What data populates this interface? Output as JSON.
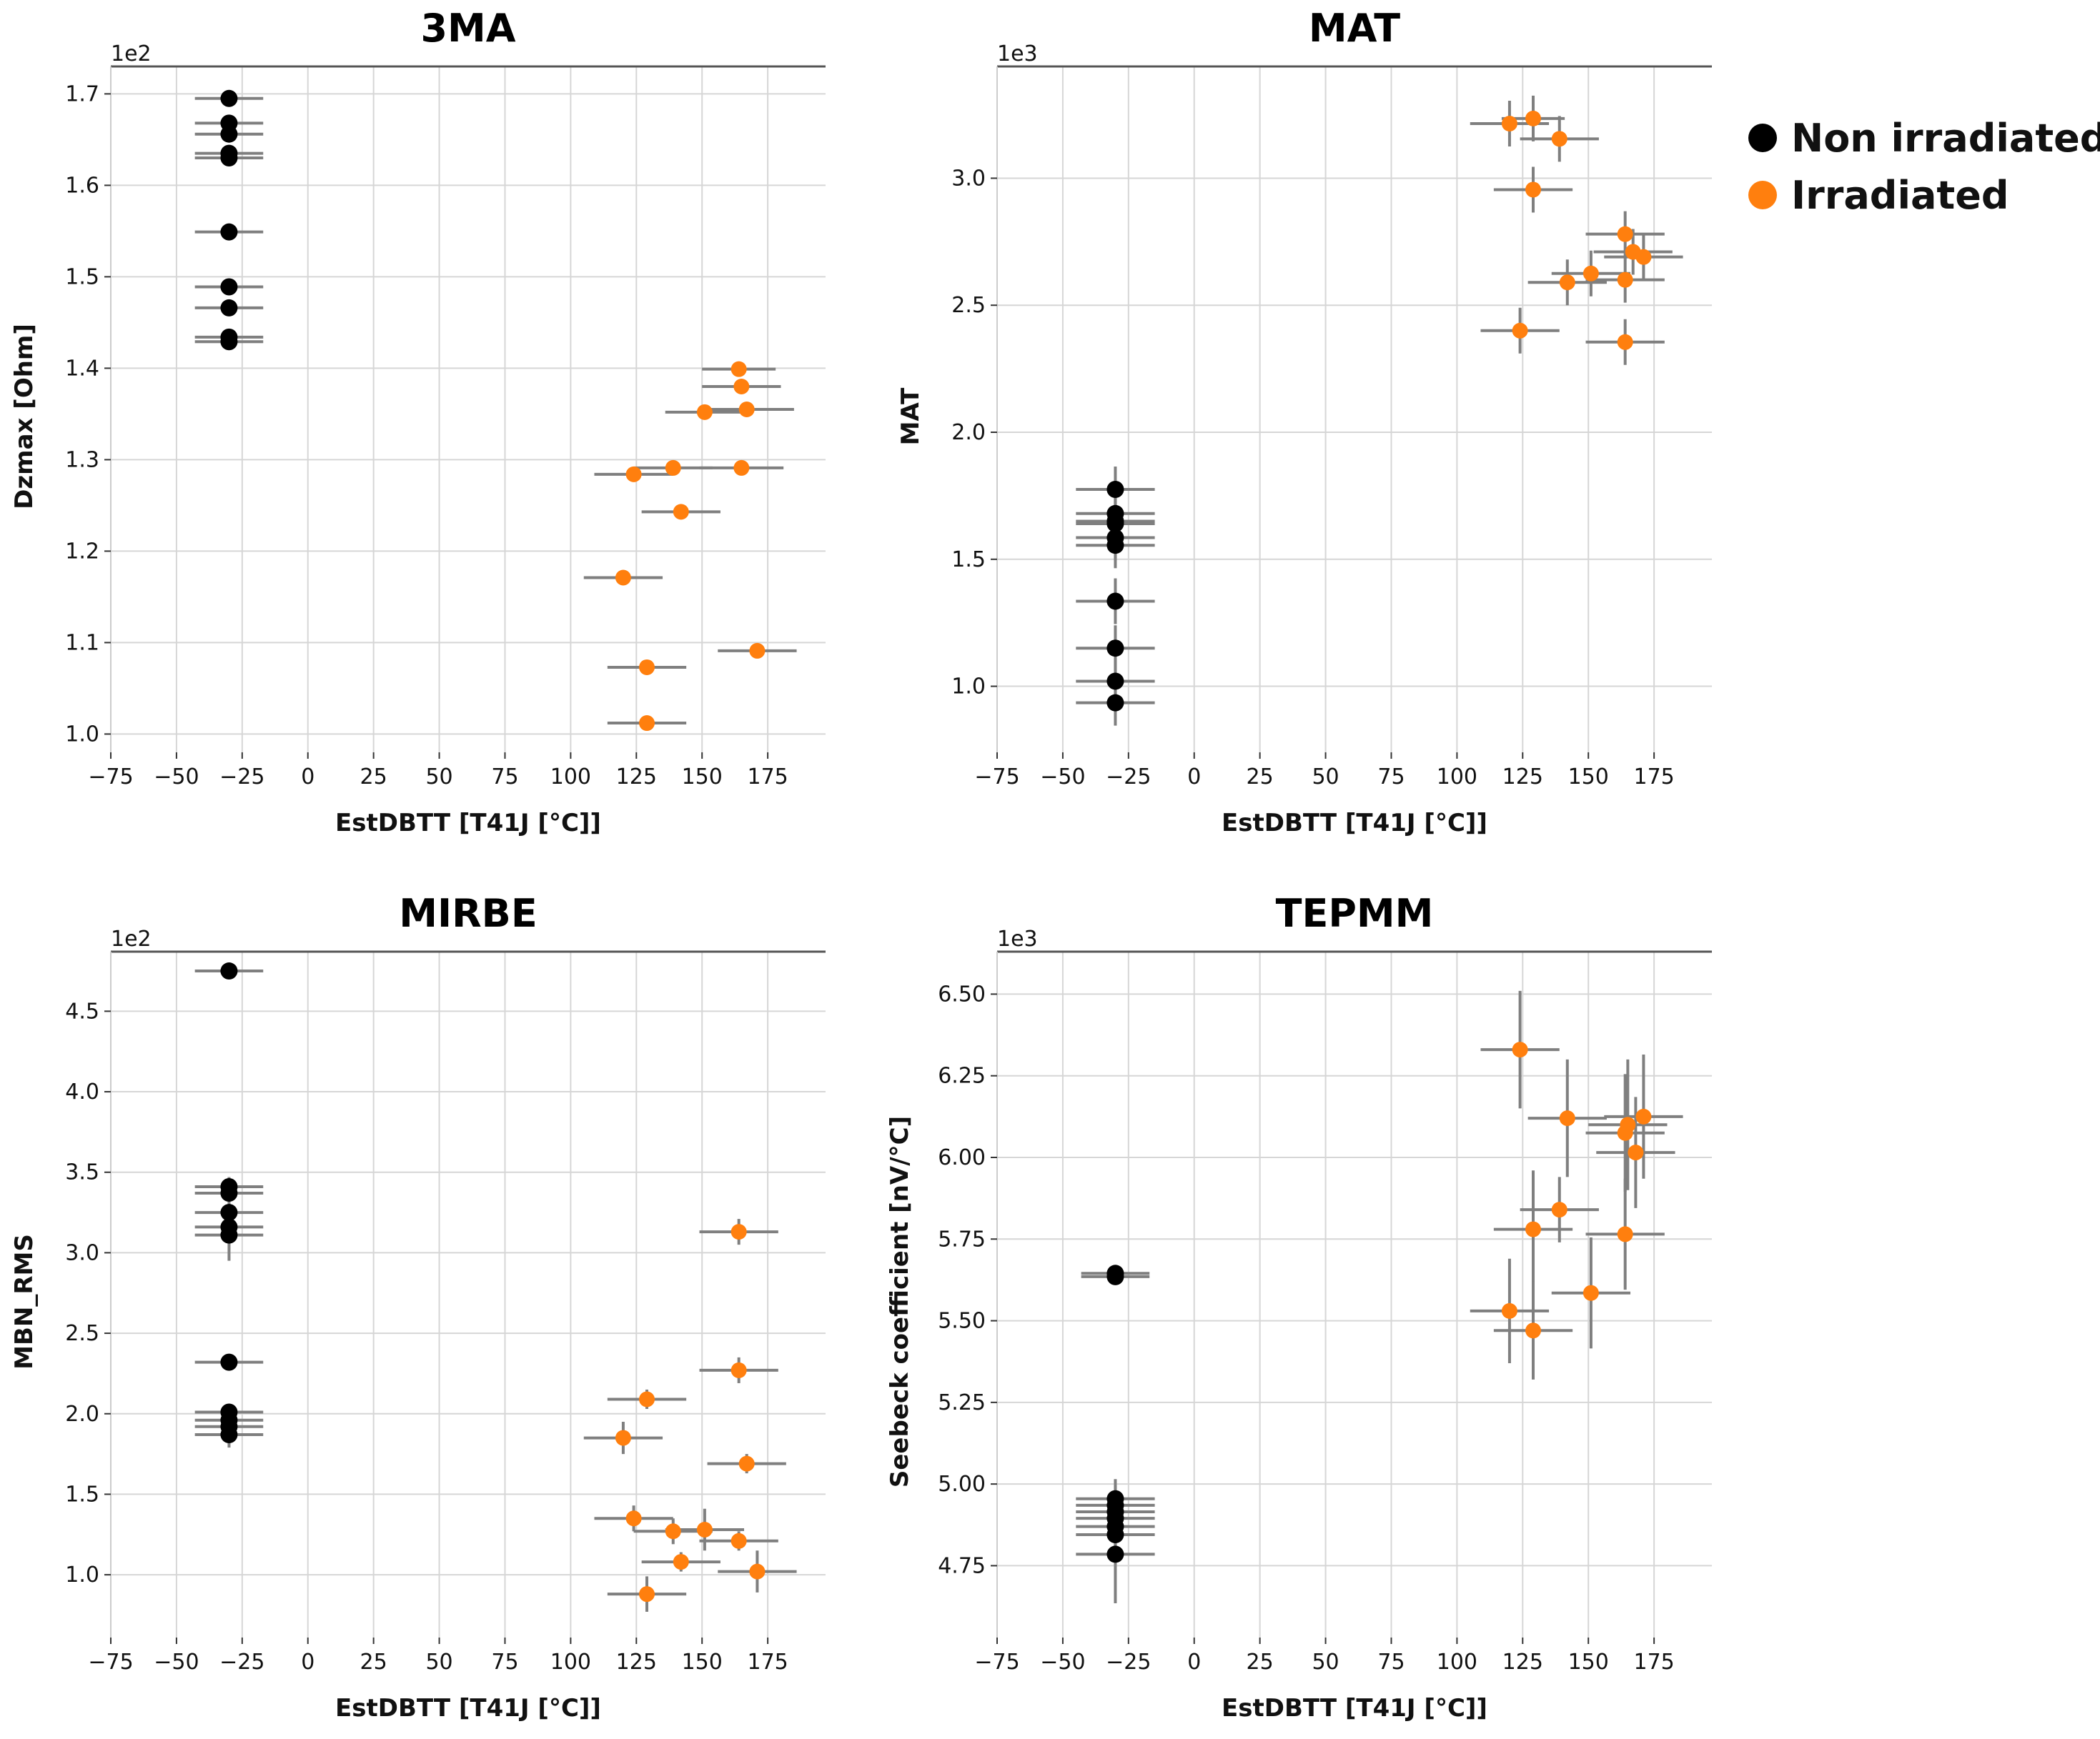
{
  "legend": [
    {
      "label": "Non irradiated",
      "color": "#000000"
    },
    {
      "label": "Irradiated",
      "color": "#ff7f0e"
    }
  ],
  "chart_data": [
    {
      "type": "scatter",
      "title": "3MA",
      "xlabel": "EstDBTT [T41J [°C]]",
      "ylabel": "Dzmax [Ohm]",
      "scale_label": "1e2",
      "xlim": [
        -75,
        197
      ],
      "ylim": [
        0.98,
        1.73
      ],
      "xticks": [
        -75,
        -50,
        -25,
        0,
        25,
        50,
        75,
        100,
        125,
        150,
        175
      ],
      "xtick_labels": [
        "−75",
        "−50",
        "−25",
        "0",
        "25",
        "50",
        "75",
        "100",
        "125",
        "150",
        "175"
      ],
      "yticks": [
        1.0,
        1.1,
        1.2,
        1.3,
        1.4,
        1.5,
        1.6,
        1.7
      ],
      "ytick_labels": [
        "1.0",
        "1.1",
        "1.2",
        "1.3",
        "1.4",
        "1.5",
        "1.6",
        "1.7"
      ],
      "grid": true,
      "series": [
        {
          "name": "Non irradiated",
          "color": "#000000",
          "points": [
            {
              "x": -30,
              "y": 1.695,
              "xerr": 13,
              "yerr": 0
            },
            {
              "x": -30,
              "y": 1.668,
              "xerr": 13,
              "yerr": 0
            },
            {
              "x": -30,
              "y": 1.656,
              "xerr": 13,
              "yerr": 0
            },
            {
              "x": -30,
              "y": 1.635,
              "xerr": 13,
              "yerr": 0
            },
            {
              "x": -30,
              "y": 1.63,
              "xerr": 13,
              "yerr": 0
            },
            {
              "x": -30,
              "y": 1.549,
              "xerr": 13,
              "yerr": 0
            },
            {
              "x": -30,
              "y": 1.489,
              "xerr": 13,
              "yerr": 0
            },
            {
              "x": -30,
              "y": 1.466,
              "xerr": 13,
              "yerr": 0
            },
            {
              "x": -30,
              "y": 1.434,
              "xerr": 13,
              "yerr": 0
            },
            {
              "x": -30,
              "y": 1.429,
              "xerr": 13,
              "yerr": 0
            }
          ]
        },
        {
          "name": "Irradiated",
          "color": "#ff7f0e",
          "points": [
            {
              "x": 164,
              "y": 1.399,
              "xerr": 14,
              "yerr": 0.004
            },
            {
              "x": 165,
              "y": 1.38,
              "xerr": 15,
              "yerr": 0.004
            },
            {
              "x": 151,
              "y": 1.352,
              "xerr": 15,
              "yerr": 0.004
            },
            {
              "x": 167,
              "y": 1.355,
              "xerr": 18,
              "yerr": 0.004
            },
            {
              "x": 139,
              "y": 1.291,
              "xerr": 15,
              "yerr": 0.008
            },
            {
              "x": 165,
              "y": 1.291,
              "xerr": 16,
              "yerr": 0.004
            },
            {
              "x": 124,
              "y": 1.284,
              "xerr": 15,
              "yerr": 0.004
            },
            {
              "x": 142,
              "y": 1.243,
              "xerr": 15,
              "yerr": 0.004
            },
            {
              "x": 120,
              "y": 1.171,
              "xerr": 15,
              "yerr": 0.004
            },
            {
              "x": 171,
              "y": 1.091,
              "xerr": 15,
              "yerr": 0.004
            },
            {
              "x": 129,
              "y": 1.073,
              "xerr": 15,
              "yerr": 0.004
            },
            {
              "x": 129,
              "y": 1.012,
              "xerr": 15,
              "yerr": 0.004
            }
          ]
        }
      ]
    },
    {
      "type": "scatter",
      "title": "MAT",
      "xlabel": "EstDBTT [T41J [°C]]",
      "ylabel": "MAT",
      "scale_label": "1e3",
      "xlim": [
        -75,
        197
      ],
      "ylim": [
        0.74,
        3.44
      ],
      "xticks": [
        -75,
        -50,
        -25,
        0,
        25,
        50,
        75,
        100,
        125,
        150,
        175
      ],
      "xtick_labels": [
        "−75",
        "−50",
        "−25",
        "0",
        "25",
        "50",
        "75",
        "100",
        "125",
        "150",
        "175"
      ],
      "yticks": [
        1.0,
        1.5,
        2.0,
        2.5,
        3.0
      ],
      "ytick_labels": [
        "1.0",
        "1.5",
        "2.0",
        "2.5",
        "3.0"
      ],
      "grid": true,
      "series": [
        {
          "name": "Non irradiated",
          "color": "#000000",
          "points": [
            {
              "x": -30,
              "y": 1.775,
              "xerr": 15,
              "yerr": 0.09
            },
            {
              "x": -30,
              "y": 1.68,
              "xerr": 15,
              "yerr": 0.09
            },
            {
              "x": -30,
              "y": 1.65,
              "xerr": 15,
              "yerr": 0.09
            },
            {
              "x": -30,
              "y": 1.64,
              "xerr": 15,
              "yerr": 0.09
            },
            {
              "x": -30,
              "y": 1.585,
              "xerr": 15,
              "yerr": 0.09
            },
            {
              "x": -30,
              "y": 1.555,
              "xerr": 15,
              "yerr": 0.09
            },
            {
              "x": -30,
              "y": 1.335,
              "xerr": 15,
              "yerr": 0.09
            },
            {
              "x": -30,
              "y": 1.15,
              "xerr": 15,
              "yerr": 0.09
            },
            {
              "x": -30,
              "y": 1.02,
              "xerr": 15,
              "yerr": 0.09
            },
            {
              "x": -30,
              "y": 0.935,
              "xerr": 15,
              "yerr": 0.09
            }
          ]
        },
        {
          "name": "Irradiated",
          "color": "#ff7f0e",
          "points": [
            {
              "x": 129,
              "y": 3.235,
              "xerr": 12,
              "yerr": 0.09
            },
            {
              "x": 120,
              "y": 3.215,
              "xerr": 15,
              "yerr": 0.09
            },
            {
              "x": 139,
              "y": 3.155,
              "xerr": 15,
              "yerr": 0.09
            },
            {
              "x": 129,
              "y": 2.955,
              "xerr": 15,
              "yerr": 0.09
            },
            {
              "x": 164,
              "y": 2.78,
              "xerr": 15,
              "yerr": 0.09
            },
            {
              "x": 167,
              "y": 2.71,
              "xerr": 15,
              "yerr": 0.09
            },
            {
              "x": 171,
              "y": 2.69,
              "xerr": 15,
              "yerr": 0.09
            },
            {
              "x": 151,
              "y": 2.625,
              "xerr": 15,
              "yerr": 0.09
            },
            {
              "x": 142,
              "y": 2.59,
              "xerr": 15,
              "yerr": 0.09
            },
            {
              "x": 164,
              "y": 2.6,
              "xerr": 15,
              "yerr": 0.09
            },
            {
              "x": 124,
              "y": 2.4,
              "xerr": 15,
              "yerr": 0.09
            },
            {
              "x": 164,
              "y": 2.355,
              "xerr": 15,
              "yerr": 0.09
            }
          ]
        }
      ]
    },
    {
      "type": "scatter",
      "title": "MIRBE",
      "xlabel": "EstDBTT [T41J [°C]]",
      "ylabel": "MBN_RMS",
      "scale_label": "1e2",
      "xlim": [
        -75,
        197
      ],
      "ylim": [
        0.61,
        4.87
      ],
      "xticks": [
        -75,
        -50,
        -25,
        0,
        25,
        50,
        75,
        100,
        125,
        150,
        175
      ],
      "xtick_labels": [
        "−75",
        "−50",
        "−25",
        "0",
        "25",
        "50",
        "75",
        "100",
        "125",
        "150",
        "175"
      ],
      "yticks": [
        1.0,
        1.5,
        2.0,
        2.5,
        3.0,
        3.5,
        4.0,
        4.5
      ],
      "ytick_labels": [
        "1.0",
        "1.5",
        "2.0",
        "2.5",
        "3.0",
        "3.5",
        "4.0",
        "4.5"
      ],
      "grid": true,
      "series": [
        {
          "name": "Non irradiated",
          "color": "#000000",
          "points": [
            {
              "x": -30,
              "y": 4.75,
              "xerr": 13,
              "yerr": 0.04
            },
            {
              "x": -30,
              "y": 3.41,
              "xerr": 13,
              "yerr": 0.06
            },
            {
              "x": -30,
              "y": 3.37,
              "xerr": 13,
              "yerr": 0.06
            },
            {
              "x": -30,
              "y": 3.25,
              "xerr": 13,
              "yerr": 0.06
            },
            {
              "x": -30,
              "y": 3.16,
              "xerr": 13,
              "yerr": 0.06
            },
            {
              "x": -30,
              "y": 3.11,
              "xerr": 13,
              "yerr": 0.16
            },
            {
              "x": -30,
              "y": 2.32,
              "xerr": 13,
              "yerr": 0.04
            },
            {
              "x": -30,
              "y": 2.01,
              "xerr": 13,
              "yerr": 0.04
            },
            {
              "x": -30,
              "y": 1.96,
              "xerr": 13,
              "yerr": 0.04
            },
            {
              "x": -30,
              "y": 1.92,
              "xerr": 13,
              "yerr": 0.04
            },
            {
              "x": -30,
              "y": 1.87,
              "xerr": 13,
              "yerr": 0.08
            }
          ]
        },
        {
          "name": "Irradiated",
          "color": "#ff7f0e",
          "points": [
            {
              "x": 164,
              "y": 3.13,
              "xerr": 15,
              "yerr": 0.08
            },
            {
              "x": 164,
              "y": 2.27,
              "xerr": 15,
              "yerr": 0.08
            },
            {
              "x": 129,
              "y": 2.09,
              "xerr": 15,
              "yerr": 0.06
            },
            {
              "x": 120,
              "y": 1.85,
              "xerr": 15,
              "yerr": 0.1
            },
            {
              "x": 167,
              "y": 1.69,
              "xerr": 15,
              "yerr": 0.06
            },
            {
              "x": 124,
              "y": 1.35,
              "xerr": 15,
              "yerr": 0.08
            },
            {
              "x": 151,
              "y": 1.28,
              "xerr": 15,
              "yerr": 0.13
            },
            {
              "x": 139,
              "y": 1.27,
              "xerr": 15,
              "yerr": 0.08
            },
            {
              "x": 164,
              "y": 1.21,
              "xerr": 15,
              "yerr": 0.06
            },
            {
              "x": 142,
              "y": 1.08,
              "xerr": 15,
              "yerr": 0.06
            },
            {
              "x": 171,
              "y": 1.02,
              "xerr": 15,
              "yerr": 0.13
            },
            {
              "x": 129,
              "y": 0.88,
              "xerr": 15,
              "yerr": 0.11
            }
          ]
        }
      ]
    },
    {
      "type": "scatter",
      "title": "TEPMM",
      "xlabel": "EstDBTT [T41J [°C]]",
      "ylabel": "Seebeck coefficient [nV/°C]",
      "scale_label": "1e3",
      "xlim": [
        -75,
        197
      ],
      "ylim": [
        4.53,
        6.63
      ],
      "xticks": [
        -75,
        -50,
        -25,
        0,
        25,
        50,
        75,
        100,
        125,
        150,
        175
      ],
      "xtick_labels": [
        "−75",
        "−50",
        "−25",
        "0",
        "25",
        "50",
        "75",
        "100",
        "125",
        "150",
        "175"
      ],
      "yticks": [
        4.75,
        5.0,
        5.25,
        5.5,
        5.75,
        6.0,
        6.25,
        6.5
      ],
      "ytick_labels": [
        "4.75",
        "5.00",
        "5.25",
        "5.50",
        "5.75",
        "6.00",
        "6.25",
        "6.50"
      ],
      "grid": true,
      "series": [
        {
          "name": "Non irradiated",
          "color": "#000000",
          "points": [
            {
              "x": -30,
              "y": 5.645,
              "xerr": 13,
              "yerr": 0.01
            },
            {
              "x": -30,
              "y": 5.635,
              "xerr": 13,
              "yerr": 0.01
            },
            {
              "x": -30,
              "y": 4.955,
              "xerr": 15,
              "yerr": 0.06
            },
            {
              "x": -30,
              "y": 4.935,
              "xerr": 15,
              "yerr": 0.06
            },
            {
              "x": -30,
              "y": 4.915,
              "xerr": 15,
              "yerr": 0.06
            },
            {
              "x": -30,
              "y": 4.895,
              "xerr": 15,
              "yerr": 0.06
            },
            {
              "x": -30,
              "y": 4.87,
              "xerr": 15,
              "yerr": 0.06
            },
            {
              "x": -30,
              "y": 4.845,
              "xerr": 15,
              "yerr": 0.06
            },
            {
              "x": -30,
              "y": 4.785,
              "xerr": 15,
              "yerr": 0.15
            }
          ]
        },
        {
          "name": "Irradiated",
          "color": "#ff7f0e",
          "points": [
            {
              "x": 124,
              "y": 6.33,
              "xerr": 15,
              "yerr": 0.18
            },
            {
              "x": 171,
              "y": 6.125,
              "xerr": 15,
              "yerr": 0.19
            },
            {
              "x": 142,
              "y": 6.12,
              "xerr": 15,
              "yerr": 0.18
            },
            {
              "x": 165,
              "y": 6.1,
              "xerr": 15,
              "yerr": 0.2
            },
            {
              "x": 164,
              "y": 6.075,
              "xerr": 15,
              "yerr": 0.18
            },
            {
              "x": 168,
              "y": 6.015,
              "xerr": 15,
              "yerr": 0.17
            },
            {
              "x": 139,
              "y": 5.84,
              "xerr": 15,
              "yerr": 0.1
            },
            {
              "x": 129,
              "y": 5.78,
              "xerr": 15,
              "yerr": 0.18
            },
            {
              "x": 164,
              "y": 5.765,
              "xerr": 15,
              "yerr": 0.17
            },
            {
              "x": 151,
              "y": 5.585,
              "xerr": 15,
              "yerr": 0.17
            },
            {
              "x": 120,
              "y": 5.53,
              "xerr": 15,
              "yerr": 0.16
            },
            {
              "x": 129,
              "y": 5.47,
              "xerr": 15,
              "yerr": 0.15
            }
          ]
        }
      ]
    }
  ]
}
